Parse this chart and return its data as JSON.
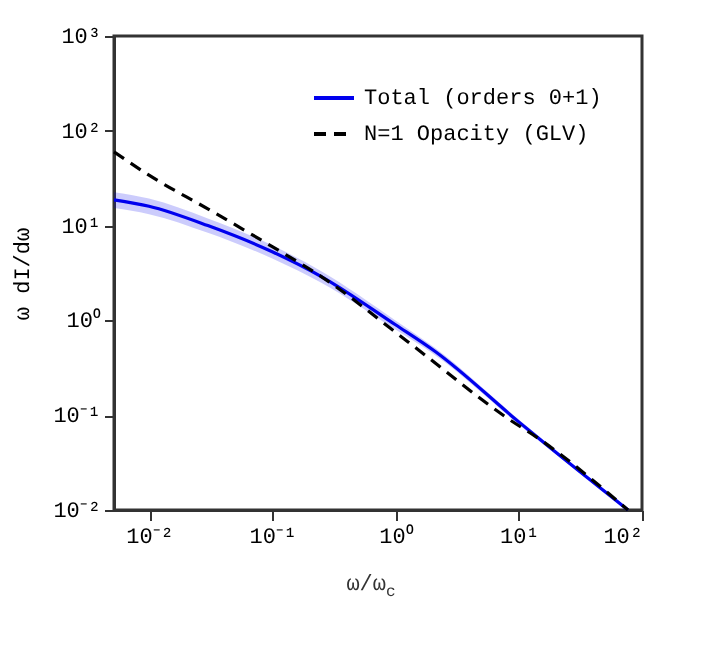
{
  "chart_data": {
    "type": "line",
    "xlabel": "ω/ω$_{c}$",
    "ylabel": "ω dI/dω",
    "log": "xy",
    "grid": false,
    "legend": "top right",
    "marker": "none",
    "xlim": [
      0.0052,
      100
    ],
    "ylim": [
      0.01,
      1000
    ],
    "xticks": [
      {
        "value": 0.01,
        "label": "10⁻²"
      },
      {
        "value": 0.1,
        "label": "10⁻¹"
      },
      {
        "value": 1,
        "label": "10⁰"
      },
      {
        "value": 10,
        "label": "10¹"
      },
      {
        "value": 100,
        "label": "10²"
      }
    ],
    "yticks": [
      {
        "value": 0.01,
        "label": "10⁻²"
      },
      {
        "value": 0.1,
        "label": "10⁻¹"
      },
      {
        "value": 1,
        "label": "10⁰"
      },
      {
        "value": 10,
        "label": "10¹"
      },
      {
        "value": 100,
        "label": "10²"
      },
      {
        "value": 1000,
        "label": "10³"
      }
    ],
    "series": [
      {
        "name": "Total (orders 0+1)",
        "color": "#0000ee",
        "line_style": "solid",
        "x": [
          0.0052,
          0.01,
          0.03,
          0.1,
          0.25,
          1,
          2.1,
          10,
          15,
          77
        ],
        "values": [
          18.7,
          16,
          10,
          5.3,
          2.9,
          0.9,
          0.47,
          0.085,
          0.055,
          0.01
        ],
        "lower": [
          15.3,
          13.2,
          8.4,
          4.5,
          2.5,
          0.8,
          0.43,
          0.08,
          0.052,
          0.01
        ],
        "upper": [
          22.5,
          19.3,
          11.9,
          6.2,
          3.3,
          1.0,
          0.51,
          0.09,
          0.058,
          0.0105
        ]
      },
      {
        "name": "N=1 Opacity (GLV)",
        "color": "#000000",
        "line_style": "dashed",
        "x": [
          0.0052,
          0.01,
          0.03,
          0.1,
          0.25,
          1.25,
          8.1,
          15,
          77
        ],
        "values": [
          60,
          34,
          15,
          6.0,
          2.9,
          0.6,
          0.093,
          0.055,
          0.01
        ]
      }
    ]
  }
}
